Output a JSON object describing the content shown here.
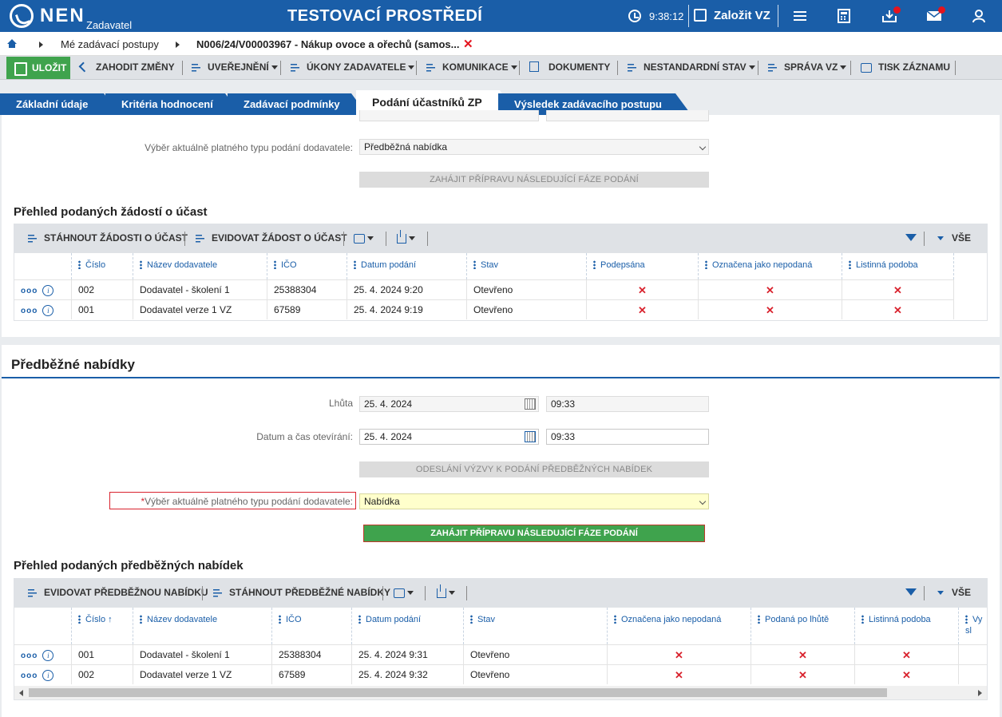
{
  "topbar": {
    "logo": "NEN",
    "logo_sub": "Zadavatel",
    "env_title": "TESTOVACÍ PROSTŘEDÍ",
    "time": "9:38:12",
    "create_label": "Založit VZ"
  },
  "breadcrumb": {
    "items": [
      "Mé zadávací postupy",
      "N006/24/V00003967 - Nákup ovoce a ořechů (samos..."
    ]
  },
  "toolbar": {
    "save": "ULOŽIT",
    "discard": "ZAHODIT ZMĚNY",
    "publish": "UVEŘEJNĚNÍ",
    "actions": "ÚKONY ZADAVATELE",
    "communication": "KOMUNIKACE",
    "documents": "DOKUMENTY",
    "nonstandard": "NESTANDARDNÍ STAV",
    "management": "SPRÁVA VZ",
    "print": "TISK ZÁZNAMU"
  },
  "tabs": [
    "Základní údaje",
    "Kritéria hodnocení",
    "Zadávací podmínky",
    "Podání účastníků ZP",
    "Výsledek zadávacího postupu"
  ],
  "section1": {
    "type_label": "Výběr aktuálně platného typu podání dodavatele:",
    "type_value": "Předběžná nabídka",
    "start_button": "ZAHÁJIT PŘÍPRAVU NÁSLEDUJÍCÍ FÁZE PODÁNÍ",
    "grid_title": "Přehled podaných žádostí o účast",
    "grid_toolbar": {
      "download": "STÁHNOUT ŽÁDOSTI O ÚČAST",
      "register": "EVIDOVAT ŽÁDOST O ÚČAST",
      "all": "VŠE"
    },
    "columns": [
      "Číslo",
      "Název dodavatele",
      "IČO",
      "Datum podání",
      "Stav",
      "Podepsána",
      "Označena jako nepodaná",
      "Listinná podoba"
    ],
    "rows": [
      {
        "cislo": "002",
        "nazev": "Dodavatel - školení 1",
        "ico": "25388304",
        "datum": "25. 4. 2024 9:20",
        "stav": "Otevřeno"
      },
      {
        "cislo": "001",
        "nazev": "Dodavatel verze 1 VZ",
        "ico": "67589",
        "datum": "25. 4. 2024 9:19",
        "stav": "Otevřeno"
      }
    ]
  },
  "section2": {
    "title": "Předběžné nabídky",
    "deadline_label": "Lhůta",
    "deadline_date": "25. 4. 2024",
    "deadline_time": "09:33",
    "open_label": "Datum a čas otevírání:",
    "open_date": "25. 4. 2024",
    "open_time": "09:33",
    "send_button": "ODESLÁNÍ VÝZVY K PODÁNÍ PŘEDBĚŽNÝCH NABÍDEK",
    "type_label": "Výběr aktuálně platného typu podání dodavatele:",
    "type_value": "Nabídka",
    "start_button": "ZAHÁJIT PŘÍPRAVU NÁSLEDUJÍCÍ FÁZE PODÁNÍ",
    "grid_title": "Přehled podaných předběžných nabídek",
    "grid_toolbar": {
      "register": "EVIDOVAT PŘEDBĚŽNOU NABÍDKU",
      "download": "STÁHNOUT PŘEDBĚŽNÉ NABÍDKY",
      "all": "VŠE"
    },
    "columns": [
      "Číslo",
      "Název dodavatele",
      "IČO",
      "Datum podání",
      "Stav",
      "Označena jako nepodaná",
      "Podaná po lhůtě",
      "Listinná podoba",
      "Vy\nsl"
    ],
    "rows": [
      {
        "cislo": "001",
        "nazev": "Dodavatel - školení 1",
        "ico": "25388304",
        "datum": "25. 4. 2024 9:31",
        "stav": "Otevřeno"
      },
      {
        "cislo": "002",
        "nazev": "Dodavatel verze 1 VZ",
        "ico": "67589",
        "datum": "25. 4. 2024 9:32",
        "stav": "Otevřeno"
      }
    ]
  },
  "colors": {
    "brand": "#1a5ea8",
    "green": "#3fa34d",
    "red": "#d9232e"
  }
}
